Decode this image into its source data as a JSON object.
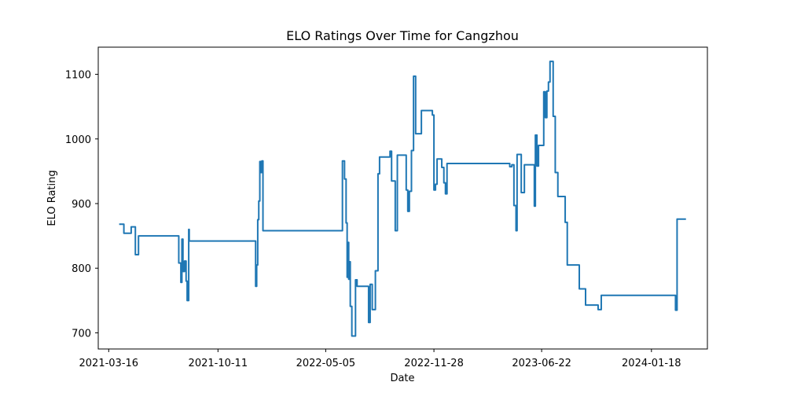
{
  "chart_data": {
    "type": "line",
    "title": "ELO Ratings Over Time for Cangzhou",
    "xlabel": "Date",
    "ylabel": "ELO Rating",
    "xlim": [
      "2021-02-24",
      "2024-05-04"
    ],
    "ylim": [
      675,
      1142
    ],
    "x_ticks": [
      "2021-03-16",
      "2021-10-11",
      "2022-05-05",
      "2022-11-28",
      "2023-06-22",
      "2024-01-18"
    ],
    "y_ticks": [
      700,
      800,
      900,
      1000,
      1100
    ],
    "grid": false,
    "line_color": "#1f77b4",
    "series": [
      {
        "name": "Cangzhou",
        "x": [
          "2021-04-05",
          "2021-04-12",
          "2021-04-14",
          "2021-04-26",
          "2021-04-28",
          "2021-05-04",
          "2021-05-06",
          "2021-05-12",
          "2021-07-26",
          "2021-07-28",
          "2021-08-01",
          "2021-08-03",
          "2021-08-05",
          "2021-08-08",
          "2021-08-11",
          "2021-08-13",
          "2021-08-16",
          "2021-08-17",
          "2021-12-20",
          "2021-12-22",
          "2021-12-24",
          "2021-12-26",
          "2021-12-28",
          "2021-12-30",
          "2022-01-01",
          "2022-01-03",
          "2022-01-05",
          "2022-01-07",
          "2022-01-09",
          "2022-06-04",
          "2022-06-06",
          "2022-06-10",
          "2022-06-13",
          "2022-06-15",
          "2022-06-17",
          "2022-06-18",
          "2022-06-19",
          "2022-06-21",
          "2022-06-24",
          "2022-06-28",
          "2022-07-01",
          "2022-07-04",
          "2022-07-26",
          "2022-07-29",
          "2022-08-02",
          "2022-08-08",
          "2022-08-11",
          "2022-08-13",
          "2022-08-16",
          "2022-09-05",
          "2022-09-08",
          "2022-09-12",
          "2022-09-15",
          "2022-09-19",
          "2022-10-06",
          "2022-10-09",
          "2022-10-12",
          "2022-10-16",
          "2022-10-20",
          "2022-10-24",
          "2022-11-04",
          "2022-11-25",
          "2022-11-28",
          "2022-12-01",
          "2022-12-04",
          "2022-12-07",
          "2022-12-13",
          "2022-12-17",
          "2022-12-20",
          "2022-12-23",
          "2023-04-22",
          "2023-04-26",
          "2023-04-30",
          "2023-05-04",
          "2023-05-06",
          "2023-05-14",
          "2023-05-20",
          "2023-06-05",
          "2023-06-08",
          "2023-06-10",
          "2023-06-13",
          "2023-06-16",
          "2023-06-26",
          "2023-06-29",
          "2023-07-02",
          "2023-07-05",
          "2023-07-08",
          "2023-07-14",
          "2023-07-18",
          "2023-07-23",
          "2023-07-26",
          "2023-08-06",
          "2023-08-10",
          "2023-09-02",
          "2023-09-06",
          "2023-09-14",
          "2023-10-08",
          "2023-10-14",
          "2024-02-22",
          "2024-03-04",
          "2024-03-07",
          "2024-03-24"
        ],
        "values": [
          868,
          868,
          854,
          854,
          864,
          864,
          821,
          850,
          850,
          808,
          778,
          845,
          795,
          811,
          780,
          750,
          860,
          842,
          842,
          772,
          805,
          875,
          904,
          965,
          948,
          966,
          858,
          858,
          858,
          858,
          966,
          938,
          870,
          786,
          840,
          783,
          810,
          741,
          695,
          695,
          782,
          772,
          716,
          775,
          736,
          796,
          796,
          946,
          972,
          981,
          935,
          935,
          858,
          975,
          921,
          888,
          919,
          982,
          1097,
          1008,
          1044,
          1037,
          921,
          930,
          969,
          969,
          956,
          932,
          915,
          962,
          957,
          960,
          897,
          858,
          976,
          917,
          960,
          960,
          896,
          1006,
          958,
          990,
          1073,
          1033,
          1074,
          1088,
          1120,
          1035,
          948,
          911,
          911,
          871,
          805,
          768,
          768,
          743,
          736,
          758,
          758,
          735,
          876,
          876
        ]
      }
    ]
  }
}
